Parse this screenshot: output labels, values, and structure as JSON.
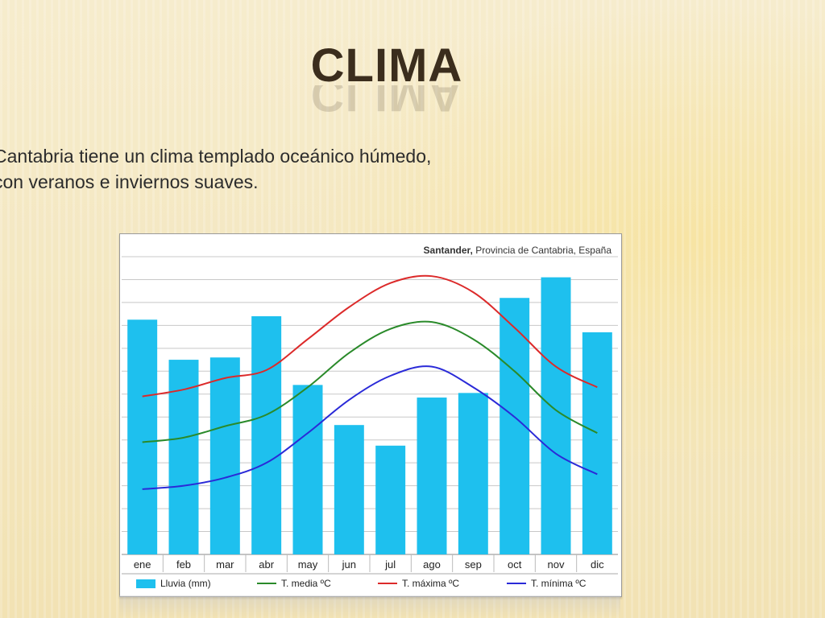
{
  "slide": {
    "title": "CLIMA",
    "line1": "Cantabria tiene un clima templado oceánico húmedo,",
    "line2": "con veranos e inviernos suaves."
  },
  "chart_data": {
    "type": "bar",
    "title_bold": "Santander,",
    "title_rest": " Provincia de Cantabria, España",
    "categories": [
      "ene",
      "feb",
      "mar",
      "abr",
      "may",
      "jun",
      "jul",
      "ago",
      "sep",
      "oct",
      "nov",
      "dic"
    ],
    "bars": {
      "name": "Lluvia (mm)",
      "color": "#1ec0ee",
      "values": [
        205,
        170,
        172,
        208,
        148,
        113,
        95,
        137,
        141,
        224,
        242,
        194
      ]
    },
    "lines": [
      {
        "name": "T. media ºC",
        "color": "#2a8a2a",
        "values": [
          9.8,
          10.2,
          11.2,
          12.2,
          14.6,
          17.6,
          19.7,
          20.3,
          18.8,
          16.0,
          12.6,
          10.6
        ]
      },
      {
        "name": "T. máxima ºC",
        "color": "#dc2a2a",
        "values": [
          13.8,
          14.4,
          15.4,
          16.1,
          18.8,
          21.6,
          23.7,
          24.3,
          22.9,
          19.8,
          16.4,
          14.6
        ]
      },
      {
        "name": "T. mínima ºC",
        "color": "#2a2ad8",
        "values": [
          5.7,
          6.0,
          6.7,
          8.0,
          10.6,
          13.5,
          15.6,
          16.4,
          14.6,
          12.0,
          8.8,
          7.0
        ]
      }
    ],
    "y_left_max": 260,
    "y_right_max": 26
  }
}
